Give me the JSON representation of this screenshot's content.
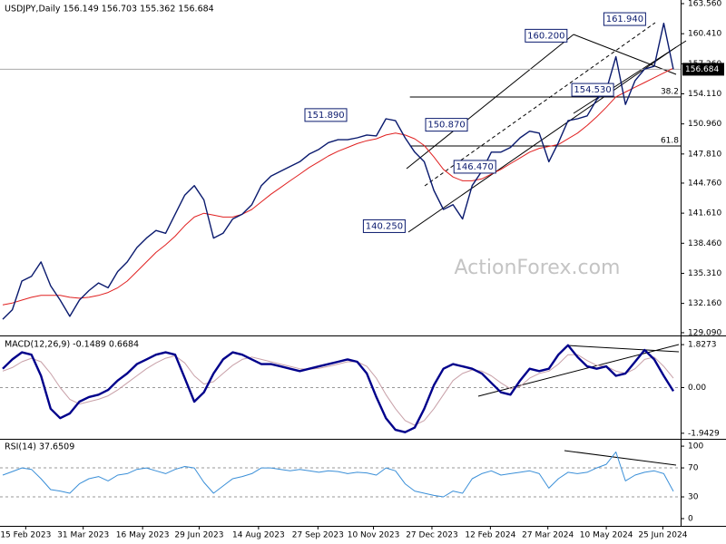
{
  "chart_data": [
    {
      "type": "line",
      "title": "USDJPY,Daily 156.149 156.703 155.362 156.684",
      "x": [
        0,
        1,
        2,
        3,
        4,
        5,
        6,
        7,
        8,
        9,
        10,
        11,
        12,
        13,
        14,
        15,
        16,
        17,
        18,
        19,
        20,
        21,
        22,
        23,
        24,
        25,
        26,
        27,
        28,
        29,
        30,
        31,
        32,
        33,
        34,
        35,
        36,
        37,
        38,
        39,
        40,
        41,
        42,
        43,
        44,
        45,
        46,
        47,
        48,
        49,
        50,
        51,
        52,
        53,
        54,
        55,
        56,
        57,
        58,
        59,
        60,
        61,
        62,
        63,
        64,
        65,
        66,
        67,
        68,
        69,
        70
      ],
      "xlim": [
        0,
        70
      ],
      "xticks": [
        {
          "value": 2.4,
          "label": "15 Feb 2023"
        },
        {
          "value": 8.4,
          "label": "31 Mar 2023"
        },
        {
          "value": 14.6,
          "label": "16 May 2023"
        },
        {
          "value": 20.5,
          "label": "29 Jun 2023"
        },
        {
          "value": 26.7,
          "label": "14 Aug 2023"
        },
        {
          "value": 32.9,
          "label": "27 Sep 2023"
        },
        {
          "value": 38.7,
          "label": "10 Nov 2023"
        },
        {
          "value": 44.8,
          "label": "27 Dec 2023"
        },
        {
          "value": 50.9,
          "label": "12 Feb 2024"
        },
        {
          "value": 56.9,
          "label": "27 Mar 2024"
        },
        {
          "value": 63.0,
          "label": "10 May 2024"
        },
        {
          "value": 68.9,
          "label": "25 Jun 2024"
        }
      ],
      "ylim": [
        128.8,
        163.94
      ],
      "yticks": [
        {
          "value": 163.56,
          "label": "163.560"
        },
        {
          "value": 160.41,
          "label": "160.410"
        },
        {
          "value": 157.26,
          "label": "157.260"
        },
        {
          "value": 154.11,
          "label": "154.110"
        },
        {
          "value": 150.96,
          "label": "150.960"
        },
        {
          "value": 147.81,
          "label": "147.810"
        },
        {
          "value": 144.76,
          "label": "144.760"
        },
        {
          "value": 141.61,
          "label": "141.610"
        },
        {
          "value": 138.46,
          "label": "138.460"
        },
        {
          "value": 135.31,
          "label": "135.310"
        },
        {
          "value": 132.16,
          "label": "132.160"
        },
        {
          "value": 129.09,
          "label": "129.090"
        }
      ],
      "series": [
        {
          "color": "#e02020",
          "width": 1,
          "values": [
            132,
            132.2,
            132.5,
            132.8,
            133,
            133,
            133,
            132.8,
            132.7,
            132.8,
            133,
            133.3,
            133.8,
            134.5,
            135.5,
            136.5,
            137.5,
            138.3,
            139.2,
            140.3,
            141.2,
            141.6,
            141.4,
            141.2,
            141.2,
            141.5,
            142,
            142.8,
            143.6,
            144.3,
            145,
            145.7,
            146.4,
            147,
            147.6,
            148.1,
            148.5,
            148.9,
            149.2,
            149.4,
            149.8,
            150,
            149.8,
            149.4,
            148.7,
            147.5,
            146.2,
            145.4,
            145,
            145,
            145.2,
            145.7,
            146.2,
            146.8,
            147.4,
            148,
            148.4,
            148.6,
            148.8,
            149.4,
            150,
            150.8,
            151.7,
            152.7,
            153.8,
            154.3,
            154.8,
            155.3,
            155.8,
            156.3,
            156.8
          ]
        },
        {
          "color": "#0a1a6e",
          "width": 1.4,
          "values": [
            130.5,
            131.5,
            134.5,
            135,
            136.5,
            134,
            132.5,
            130.8,
            132.5,
            133.5,
            134.3,
            133.8,
            135.5,
            136.5,
            138,
            139,
            139.8,
            139.5,
            141.5,
            143.5,
            144.5,
            143,
            139,
            139.5,
            141,
            141.5,
            142.5,
            144.5,
            145.5,
            146,
            146.5,
            147,
            147.8,
            148.3,
            149,
            149.3,
            149.3,
            149.5,
            149.8,
            149.7,
            151.5,
            151.3,
            149.5,
            148,
            147,
            144,
            142,
            142.5,
            141,
            144.5,
            146,
            148,
            148,
            148.5,
            149.5,
            150.2,
            150,
            147,
            149,
            151.3,
            151.5,
            151.8,
            153.5,
            154.5,
            158,
            153,
            155.5,
            156.7,
            157,
            161.5,
            156.684
          ]
        }
      ],
      "annotations": [
        {
          "label": "161.940",
          "x": 67.1,
          "value": 161.94
        },
        {
          "label": "160.200",
          "x": 58.9,
          "value": 160.2
        },
        {
          "label": "151.890",
          "x": 35.9,
          "value": 151.89
        },
        {
          "label": "150.870",
          "x": 48.5,
          "value": 150.87
        },
        {
          "label": "146.470",
          "x": 47.1,
          "value": 146.47
        },
        {
          "label": "154.530",
          "x": 59.4,
          "value": 154.53
        },
        {
          "label": "140.250",
          "x": 42.0,
          "value": 140.25
        }
      ],
      "levels": [
        {
          "label": "38.2",
          "x": 42.5,
          "value": 153.78
        },
        {
          "label": "61.8",
          "x": 42.5,
          "value": 148.65
        }
      ],
      "last_price": {
        "label": "156.684",
        "value": 156.684
      }
    },
    {
      "type": "line",
      "title": "MACD(12,26,9) -0.1489 0.6684",
      "ylim": [
        -2.18,
        2.14
      ],
      "yticks": [
        1.8273,
        {
          "value": 0,
          "label": "0.00"
        },
        -1.9429
      ],
      "reference_lines": [
        0
      ],
      "series": [
        {
          "color": "#c8a0a8",
          "width": 1,
          "values": [
            0.7,
            0.85,
            1.1,
            1.25,
            1.1,
            0.6,
            0.0,
            -0.5,
            -0.7,
            -0.6,
            -0.5,
            -0.35,
            -0.1,
            0.2,
            0.5,
            0.8,
            1.05,
            1.25,
            1.35,
            1.05,
            0.5,
            0.15,
            0.25,
            0.6,
            0.95,
            1.2,
            1.3,
            1.2,
            1.1,
            1.0,
            0.9,
            0.8,
            0.78,
            0.82,
            0.9,
            1.0,
            1.1,
            1.1,
            0.9,
            0.4,
            -0.3,
            -0.9,
            -1.4,
            -1.6,
            -1.4,
            -0.9,
            -0.3,
            0.3,
            0.6,
            0.75,
            0.7,
            0.5,
            0.2,
            -0.05,
            0.05,
            0.4,
            0.6,
            0.7,
            1.0,
            1.4,
            1.4,
            1.15,
            0.95,
            0.9,
            0.7,
            0.6,
            0.8,
            1.2,
            1.3,
            0.9,
            0.4
          ]
        },
        {
          "color": "#00008b",
          "width": 2.4,
          "values": [
            0.8,
            1.2,
            1.5,
            1.4,
            0.5,
            -0.9,
            -1.3,
            -1.1,
            -0.6,
            -0.4,
            -0.3,
            -0.1,
            0.3,
            0.6,
            1.0,
            1.2,
            1.4,
            1.5,
            1.4,
            0.4,
            -0.6,
            -0.2,
            0.6,
            1.2,
            1.5,
            1.4,
            1.2,
            1.0,
            1.0,
            0.9,
            0.8,
            0.7,
            0.8,
            0.9,
            1.0,
            1.1,
            1.2,
            1.1,
            0.6,
            -0.4,
            -1.3,
            -1.8,
            -1.9,
            -1.7,
            -0.9,
            0.1,
            0.8,
            1.0,
            0.9,
            0.8,
            0.6,
            0.2,
            -0.2,
            -0.3,
            0.3,
            0.8,
            0.7,
            0.8,
            1.4,
            1.8,
            1.3,
            0.9,
            0.8,
            0.9,
            0.5,
            0.6,
            1.1,
            1.6,
            1.2,
            0.5,
            -0.15
          ]
        }
      ]
    },
    {
      "type": "line",
      "title": "RSI(14) 37.6509",
      "ylim": [
        -10,
        107.6
      ],
      "yticks": [
        100,
        70,
        30,
        0
      ],
      "reference_lines": [
        70,
        30
      ],
      "series": [
        {
          "color": "#3a8fd8",
          "width": 1,
          "values": [
            60,
            65,
            70,
            68,
            55,
            40,
            38,
            35,
            48,
            55,
            58,
            52,
            60,
            62,
            68,
            70,
            66,
            62,
            68,
            72,
            70,
            50,
            35,
            45,
            55,
            58,
            62,
            70,
            70,
            68,
            66,
            68,
            66,
            64,
            66,
            65,
            62,
            64,
            63,
            60,
            70,
            66,
            48,
            38,
            35,
            32,
            30,
            38,
            35,
            55,
            62,
            66,
            60,
            62,
            64,
            66,
            62,
            42,
            55,
            64,
            62,
            64,
            70,
            75,
            92,
            52,
            60,
            64,
            66,
            62,
            37.6509
          ]
        }
      ]
    }
  ],
  "watermark": "ActionForex.com"
}
